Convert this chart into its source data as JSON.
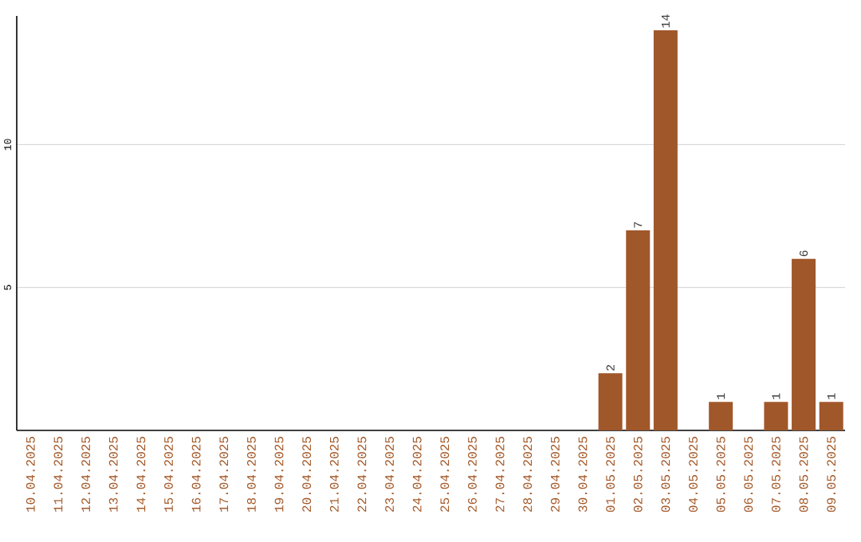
{
  "chart_data": {
    "type": "bar",
    "categories": [
      "10.04.2025",
      "11.04.2025",
      "12.04.2025",
      "13.04.2025",
      "14.04.2025",
      "15.04.2025",
      "16.04.2025",
      "17.04.2025",
      "18.04.2025",
      "19.04.2025",
      "20.04.2025",
      "21.04.2025",
      "22.04.2025",
      "23.04.2025",
      "24.04.2025",
      "25.04.2025",
      "26.04.2025",
      "27.04.2025",
      "28.04.2025",
      "29.04.2025",
      "30.04.2025",
      "01.05.2025",
      "02.05.2025",
      "03.05.2025",
      "04.05.2025",
      "05.05.2025",
      "06.05.2025",
      "07.05.2025",
      "08.05.2025",
      "09.05.2025"
    ],
    "values": [
      0,
      0,
      0,
      0,
      0,
      0,
      0,
      0,
      0,
      0,
      0,
      0,
      0,
      0,
      0,
      0,
      0,
      0,
      0,
      0,
      0,
      2,
      7,
      14,
      0,
      1,
      0,
      1,
      6,
      1
    ],
    "value_labels": [
      null,
      null,
      null,
      null,
      null,
      null,
      null,
      null,
      null,
      null,
      null,
      null,
      null,
      null,
      null,
      null,
      null,
      null,
      null,
      null,
      null,
      "2",
      "7",
      "14",
      null,
      "1",
      null,
      "1",
      "6",
      "1"
    ],
    "color": "#a0572a",
    "ylim": [
      0,
      14.5
    ],
    "yticks": [
      5,
      10
    ],
    "grid": "y"
  }
}
